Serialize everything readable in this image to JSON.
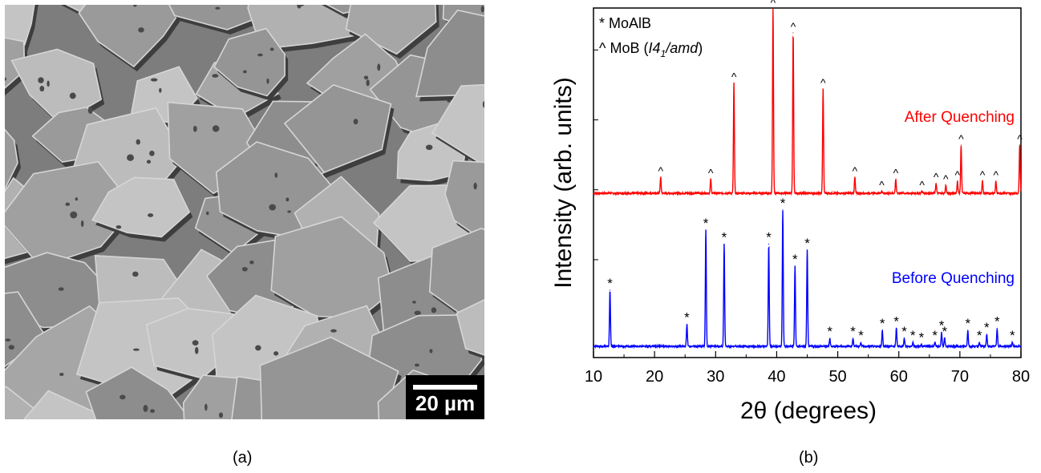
{
  "panel_a": {
    "scale_bar_label": "20 µm",
    "caption": "(a)"
  },
  "panel_b": {
    "caption": "(b)"
  },
  "chart_data": {
    "type": "line",
    "title": "",
    "xlabel": "2θ (degrees)",
    "ylabel": "Intensity (arb. units)",
    "xlim": [
      10,
      80
    ],
    "xticks": [
      10,
      20,
      30,
      40,
      50,
      60,
      70,
      80
    ],
    "grid": false,
    "legend": {
      "placement": "top-left",
      "entries": [
        {
          "marker": "*",
          "label": "MoAlB"
        },
        {
          "marker": "^",
          "label": "MoB (",
          "label_italic": "I4",
          "subscript": "1",
          "label_italic_2": "/amd",
          "label_close": ")"
        }
      ]
    },
    "series": [
      {
        "name": "After Quenching",
        "color": "#ff0000",
        "marker": "^",
        "peaks": [
          {
            "x": 21.0,
            "h": 0.08
          },
          {
            "x": 29.2,
            "h": 0.07
          },
          {
            "x": 33.0,
            "h": 0.55
          },
          {
            "x": 39.4,
            "h": 0.92
          },
          {
            "x": 42.7,
            "h": 0.8
          },
          {
            "x": 47.6,
            "h": 0.52
          },
          {
            "x": 52.8,
            "h": 0.08
          },
          {
            "x": 57.2,
            "h": 0.01
          },
          {
            "x": 59.5,
            "h": 0.07
          },
          {
            "x": 63.8,
            "h": 0.01
          },
          {
            "x": 66.1,
            "h": 0.05
          },
          {
            "x": 67.7,
            "h": 0.04
          },
          {
            "x": 69.6,
            "h": 0.06
          },
          {
            "x": 70.2,
            "h": 0.24
          },
          {
            "x": 73.7,
            "h": 0.06
          },
          {
            "x": 75.9,
            "h": 0.06
          },
          {
            "x": 79.8,
            "h": 0.24
          }
        ]
      },
      {
        "name": "Before Quenching",
        "color": "#0000ff",
        "marker": "*",
        "peaks": [
          {
            "x": 12.7,
            "h": 0.28
          },
          {
            "x": 25.3,
            "h": 0.11
          },
          {
            "x": 28.4,
            "h": 0.58
          },
          {
            "x": 31.4,
            "h": 0.51
          },
          {
            "x": 38.7,
            "h": 0.51
          },
          {
            "x": 41.0,
            "h": 0.68
          },
          {
            "x": 43.0,
            "h": 0.4
          },
          {
            "x": 45.0,
            "h": 0.48
          },
          {
            "x": 48.7,
            "h": 0.04
          },
          {
            "x": 52.5,
            "h": 0.04
          },
          {
            "x": 53.8,
            "h": 0.02
          },
          {
            "x": 57.3,
            "h": 0.08
          },
          {
            "x": 59.6,
            "h": 0.09
          },
          {
            "x": 60.9,
            "h": 0.04
          },
          {
            "x": 62.3,
            "h": 0.02
          },
          {
            "x": 63.7,
            "h": 0.01
          },
          {
            "x": 65.9,
            "h": 0.02
          },
          {
            "x": 67.0,
            "h": 0.07
          },
          {
            "x": 67.5,
            "h": 0.04
          },
          {
            "x": 71.3,
            "h": 0.08
          },
          {
            "x": 73.2,
            "h": 0.02
          },
          {
            "x": 74.4,
            "h": 0.06
          },
          {
            "x": 76.1,
            "h": 0.09
          },
          {
            "x": 78.6,
            "h": 0.02
          }
        ]
      }
    ]
  }
}
